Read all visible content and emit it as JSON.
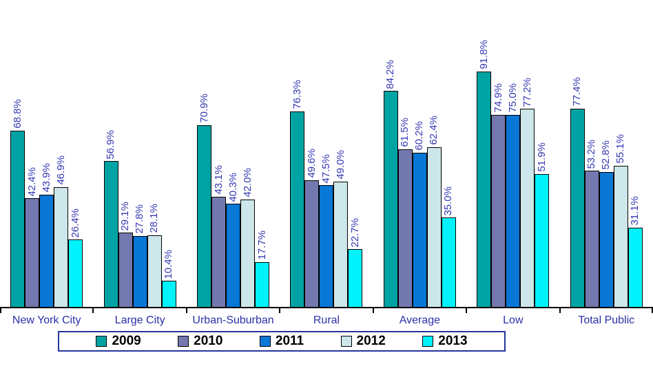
{
  "chart_data": {
    "type": "bar",
    "title": "",
    "categories": [
      "New York City",
      "Large City",
      "Urban-Suburban",
      "Rural",
      "Average",
      "Low",
      "Total Public"
    ],
    "series": [
      {
        "name": "2009",
        "color": "#00A3A3",
        "values": [
          68.8,
          56.9,
          70.9,
          76.3,
          84.2,
          91.8,
          77.4
        ]
      },
      {
        "name": "2010",
        "color": "#7379AE",
        "values": [
          42.4,
          29.1,
          43.1,
          49.6,
          61.5,
          74.9,
          53.2
        ]
      },
      {
        "name": "2011",
        "color": "#0877D6",
        "values": [
          43.9,
          27.8,
          40.3,
          47.5,
          60.2,
          75.0,
          52.8
        ]
      },
      {
        "name": "2012",
        "color": "#CCE6E9",
        "values": [
          46.9,
          28.1,
          42.0,
          49.0,
          62.4,
          77.2,
          55.1
        ]
      },
      {
        "name": "2013",
        "color": "#00F2FA",
        "values": [
          26.4,
          10.4,
          17.7,
          22.7,
          35.0,
          51.9,
          31.1
        ]
      }
    ],
    "value_suffix": "%",
    "value_decimals": 1,
    "ylim": [
      0,
      100
    ],
    "grid": false,
    "legend_position": "bottom",
    "data_label_style": "rotated-90-above-bar"
  },
  "colors": {
    "value_label": "#3437B2",
    "category_label": "#2B2FA8",
    "axis": "#000000",
    "bar_border": "#000000",
    "legend_border": "#24349C",
    "legend_text": "#000000",
    "background": "#FFFFFF"
  }
}
